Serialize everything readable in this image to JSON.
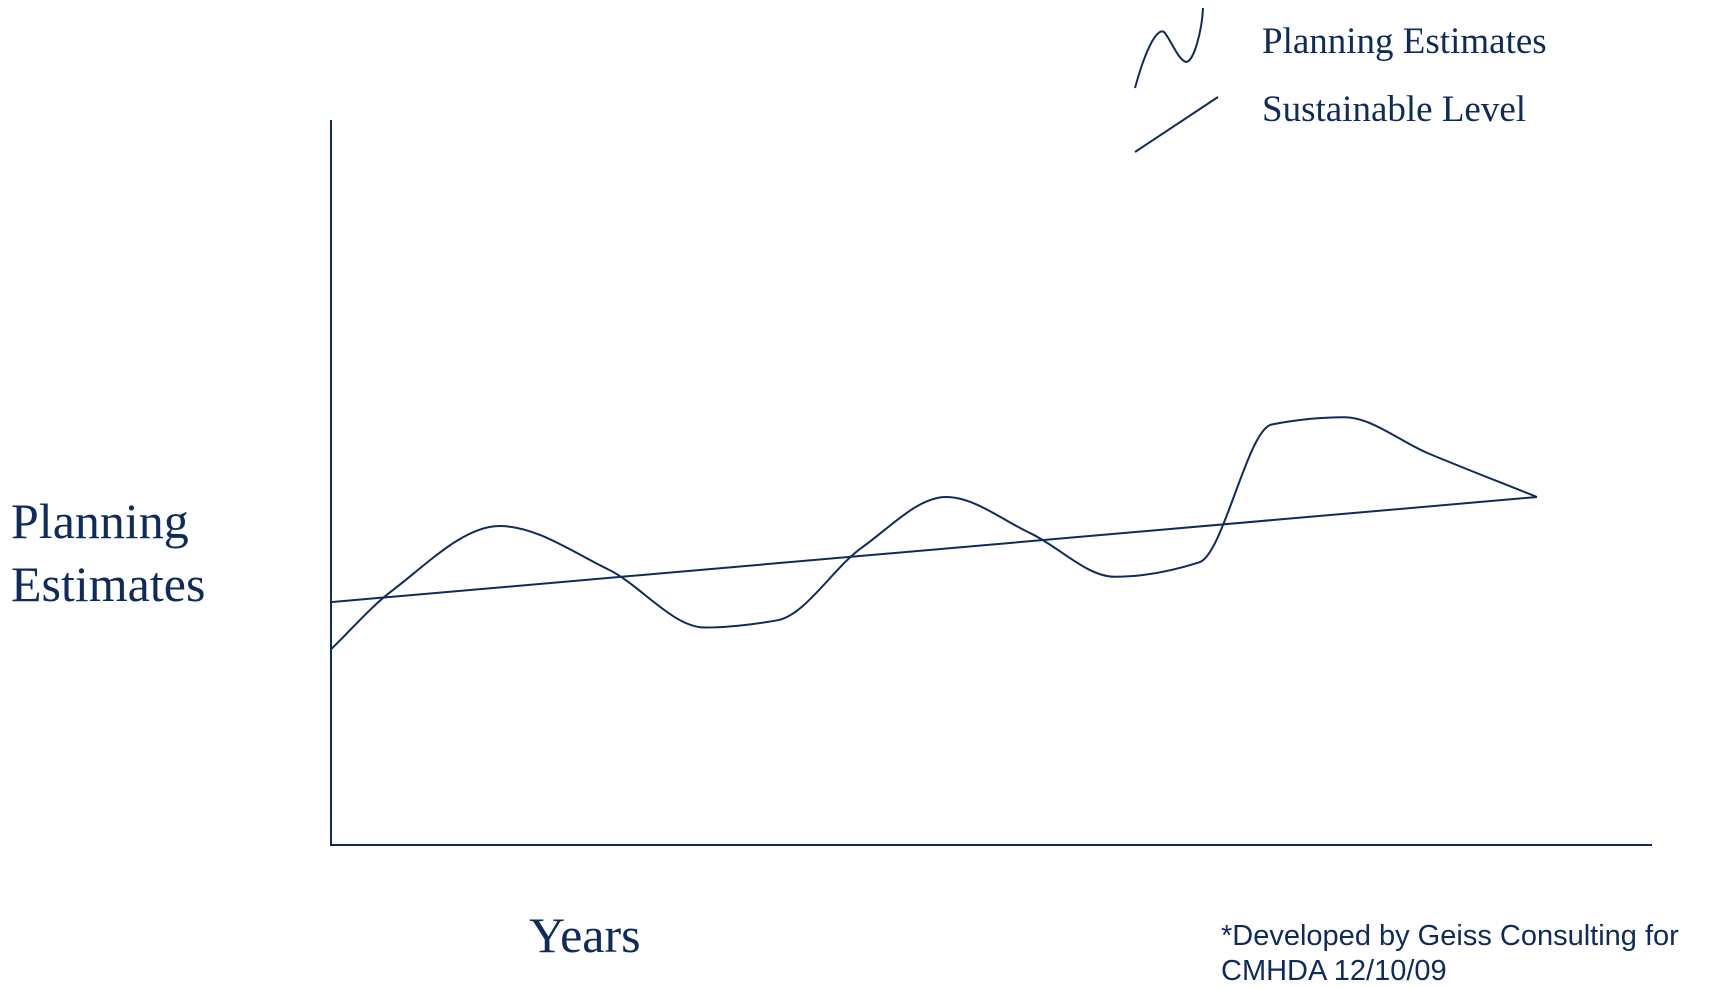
{
  "chart_data": {
    "type": "line",
    "title": "",
    "xlabel": "Years",
    "ylabel": "Planning Estimates",
    "xlim": [
      0,
      100
    ],
    "ylim": [
      0,
      100
    ],
    "grid": false,
    "axis_ticks": false,
    "legend_position": "top-right",
    "series": [
      {
        "name": "Planning Estimates",
        "style": "wavy",
        "color": "#0f2b5c",
        "x": [
          0,
          5,
          14,
          23,
          31,
          37,
          44,
          51,
          58,
          65,
          72,
          78,
          84,
          91,
          100
        ],
        "y": [
          27,
          35,
          44,
          38,
          30,
          31,
          41,
          48,
          43,
          37,
          39,
          58,
          59,
          54,
          48
        ]
      },
      {
        "name": "Sustainable Level",
        "style": "straight",
        "color": "#0f2b5c",
        "x": [
          0,
          100
        ],
        "y": [
          33.5,
          48
        ]
      }
    ]
  },
  "legend": {
    "items": [
      {
        "label": "Planning Estimates",
        "icon": "wavy-line-icon"
      },
      {
        "label": "Sustainable Level",
        "icon": "straight-line-icon"
      }
    ]
  },
  "footnote": {
    "line1": "*Developed by Geiss Consulting for",
    "line2": "CMHDA 12/10/09"
  },
  "colors": {
    "ink": "#0f2b5c",
    "background": "#ffffff"
  }
}
